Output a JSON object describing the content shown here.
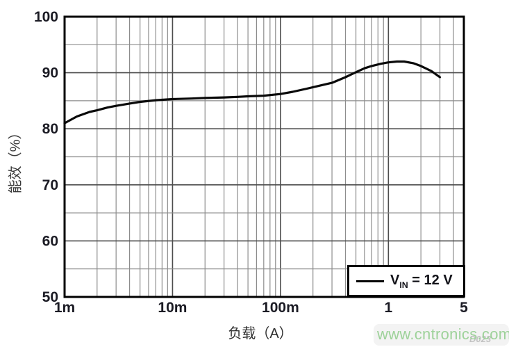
{
  "chart_data": {
    "type": "line",
    "title": "",
    "xlabel": "负载（A）",
    "ylabel": "能效（%）",
    "x_scale": "log",
    "xlim": [
      0.001,
      5
    ],
    "ylim": [
      50,
      100
    ],
    "y_minor_step": 5,
    "grid": true,
    "x_ticks": [
      {
        "v": 0.001,
        "label": "1m"
      },
      {
        "v": 0.01,
        "label": "10m"
      },
      {
        "v": 0.1,
        "label": "100m"
      },
      {
        "v": 1,
        "label": "1"
      },
      {
        "v": 5,
        "label": "5"
      }
    ],
    "y_ticks": [
      {
        "v": 100,
        "label": "100"
      },
      {
        "v": 90,
        "label": "90"
      },
      {
        "v": 80,
        "label": "80"
      },
      {
        "v": 70,
        "label": "70"
      },
      {
        "v": 60,
        "label": "60"
      },
      {
        "v": 50,
        "label": "50"
      }
    ],
    "legend": {
      "position": "bottom-right",
      "label_base": "V",
      "label_sub": "IN",
      "label_rest": " = 12 V"
    },
    "series": [
      {
        "name": "VIN = 12 V",
        "color": "#000000",
        "points": [
          [
            0.001,
            81.0
          ],
          [
            0.0013,
            82.2
          ],
          [
            0.0017,
            83.0
          ],
          [
            0.002,
            83.3
          ],
          [
            0.0025,
            83.8
          ],
          [
            0.003,
            84.1
          ],
          [
            0.004,
            84.5
          ],
          [
            0.005,
            84.8
          ],
          [
            0.007,
            85.1
          ],
          [
            0.01,
            85.3
          ],
          [
            0.015,
            85.4
          ],
          [
            0.02,
            85.5
          ],
          [
            0.03,
            85.6
          ],
          [
            0.04,
            85.7
          ],
          [
            0.05,
            85.8
          ],
          [
            0.07,
            85.9
          ],
          [
            0.1,
            86.2
          ],
          [
            0.13,
            86.6
          ],
          [
            0.17,
            87.1
          ],
          [
            0.22,
            87.6
          ],
          [
            0.3,
            88.2
          ],
          [
            0.4,
            89.2
          ],
          [
            0.5,
            90.1
          ],
          [
            0.6,
            90.8
          ],
          [
            0.7,
            91.2
          ],
          [
            0.85,
            91.6
          ],
          [
            1.0,
            91.85
          ],
          [
            1.2,
            92.0
          ],
          [
            1.4,
            92.0
          ],
          [
            1.7,
            91.7
          ],
          [
            2.0,
            91.2
          ],
          [
            2.5,
            90.3
          ],
          [
            3.0,
            89.2
          ]
        ]
      }
    ]
  },
  "watermark": {
    "text": "www.cntronics.com",
    "color": "#9ed29a"
  },
  "figure_code": "D023",
  "colors": {
    "grid_minor": "#8c8c8c",
    "grid_major": "#4d4d4d",
    "frame": "#000000",
    "tick_text": "#1b1b24",
    "curve": "#0a0a0a"
  }
}
